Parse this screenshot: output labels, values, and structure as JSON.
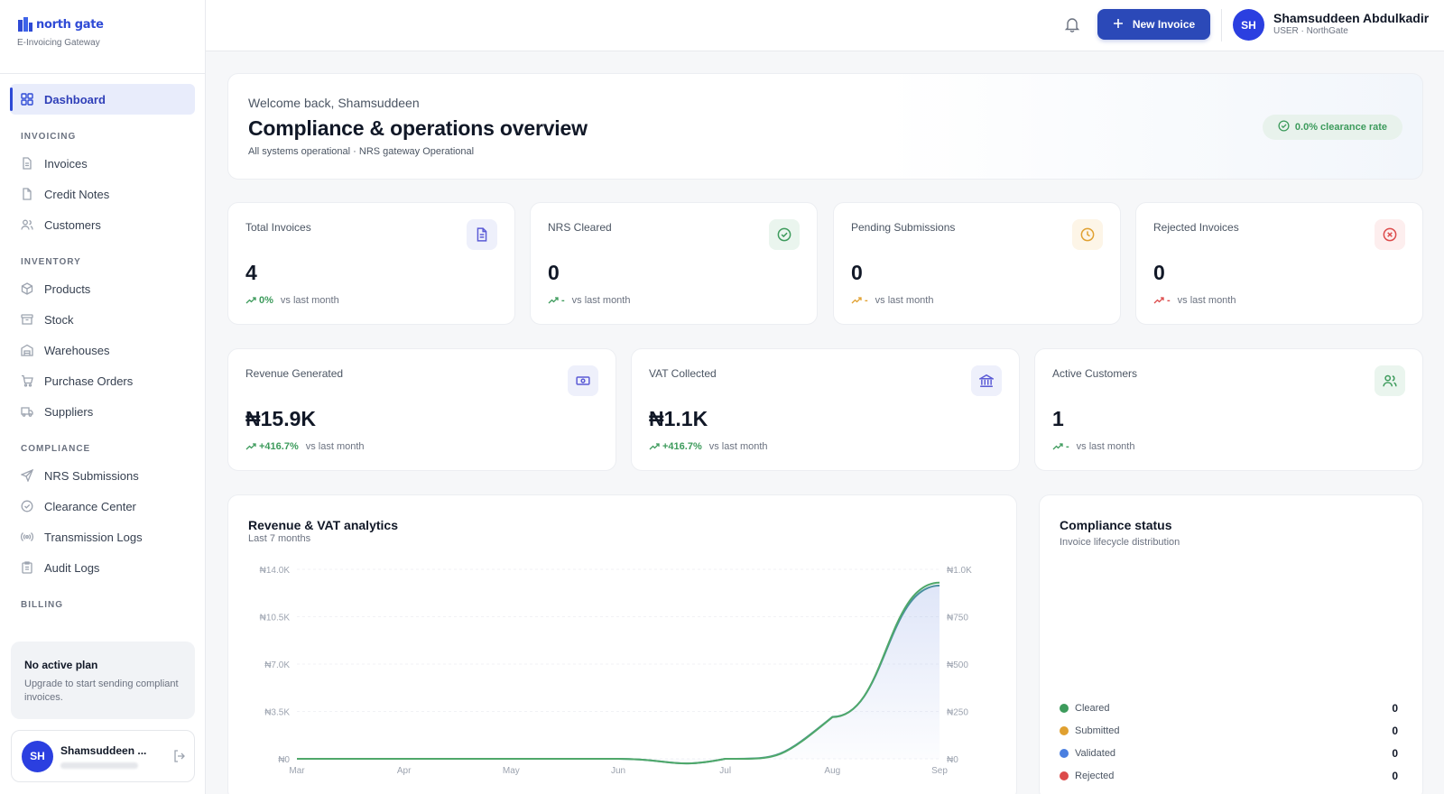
{
  "brand": {
    "logo_text": "north gate",
    "tagline": "E-Invoicing Gateway"
  },
  "sidebar": {
    "dashboard": "Dashboard",
    "sections": {
      "invoicing": "INVOICING",
      "inventory": "INVENTORY",
      "compliance": "COMPLIANCE",
      "billing": "BILLING"
    },
    "invoicing_items": [
      "Invoices",
      "Credit Notes",
      "Customers"
    ],
    "inventory_items": [
      "Products",
      "Stock",
      "Warehouses",
      "Purchase Orders",
      "Suppliers"
    ],
    "compliance_items": [
      "NRS Submissions",
      "Clearance Center",
      "Transmission Logs",
      "Audit Logs"
    ],
    "plan": {
      "title": "No active plan",
      "subtitle": "Upgrade to start sending compliant invoices."
    },
    "user": {
      "initials": "SH",
      "name": "Shamsuddeen ..."
    }
  },
  "topbar": {
    "new_invoice": "New Invoice",
    "user": {
      "initials": "SH",
      "name": "Shamsuddeen Abdulkadir",
      "role": "USER · NorthGate"
    }
  },
  "welcome": {
    "greeting": "Welcome back, Shamsuddeen",
    "title": "Compliance & operations overview",
    "subtitle": "All systems operational · NRS gateway Operational",
    "badge": "0.0% clearance rate"
  },
  "stats_row1": [
    {
      "label": "Total Invoices",
      "value": "4",
      "trend": "0%",
      "trend_label": "vs last month",
      "icon": "document-icon",
      "color": "#5b5bd6",
      "bg": "#eef0fb"
    },
    {
      "label": "NRS Cleared",
      "value": "0",
      "trend": "-",
      "trend_label": "vs last month",
      "icon": "check-circle-icon",
      "color": "#3d9b5c",
      "bg": "#eaf5ee"
    },
    {
      "label": "Pending Submissions",
      "value": "0",
      "trend": "-",
      "trend_label": "vs last month",
      "icon": "clock-icon",
      "color": "#e0a030",
      "bg": "#fdf5e7"
    },
    {
      "label": "Rejected Invoices",
      "value": "0",
      "trend": "-",
      "trend_label": "vs last month",
      "icon": "x-circle-icon",
      "color": "#dc4a4a",
      "bg": "#fdeeee"
    }
  ],
  "stats_row2": [
    {
      "label": "Revenue Generated",
      "value": "₦15.9K",
      "trend": "+416.7%",
      "trend_label": "vs last month",
      "icon": "banknote-icon",
      "color": "#5b5bd6",
      "bg": "#eef0fb"
    },
    {
      "label": "VAT Collected",
      "value": "₦1.1K",
      "trend": "+416.7%",
      "trend_label": "vs last month",
      "icon": "bank-icon",
      "color": "#5b5bd6",
      "bg": "#eef0fb"
    },
    {
      "label": "Active Customers",
      "value": "1",
      "trend": "-",
      "trend_label": "vs last month",
      "icon": "users-icon",
      "color": "#3d9b5c",
      "bg": "#eaf5ee"
    }
  ],
  "revenue_chart": {
    "title": "Revenue & VAT analytics",
    "subtitle": "Last 7 months",
    "colors": {
      "revenue": "#4a8fa0",
      "vat": "#4fa86a"
    }
  },
  "chart_data": {
    "type": "area",
    "title": "Revenue & VAT analytics",
    "subtitle": "Last 7 months",
    "categories": [
      "Mar",
      "Apr",
      "May",
      "Jun",
      "Jul",
      "Aug",
      "Sep"
    ],
    "y_left_ticks": [
      "₦0",
      "₦3.5K",
      "₦7.0K",
      "₦10.5K",
      "₦14.0K"
    ],
    "y_right_ticks": [
      "₦0",
      "₦250",
      "₦500",
      "₦750",
      "₦1.0K"
    ],
    "ylim_left": [
      0,
      14000
    ],
    "ylim_right": [
      0,
      1000
    ],
    "series": [
      {
        "values": [
          0,
          0,
          0,
          0,
          0,
          3100,
          12800
        ],
        "axis": "left"
      },
      {
        "values": [
          0,
          0,
          0,
          0,
          0,
          220,
          930
        ],
        "axis": "right"
      }
    ],
    "grid": true
  },
  "compliance": {
    "title": "Compliance status",
    "subtitle": "Invoice lifecycle distribution",
    "items": [
      {
        "label": "Cleared",
        "value": "0",
        "color": "#3d9b5c"
      },
      {
        "label": "Submitted",
        "value": "0",
        "color": "#e0a030"
      },
      {
        "label": "Validated",
        "value": "0",
        "color": "#4a7fe0"
      },
      {
        "label": "Rejected",
        "value": "0",
        "color": "#dc4a4a"
      }
    ]
  }
}
